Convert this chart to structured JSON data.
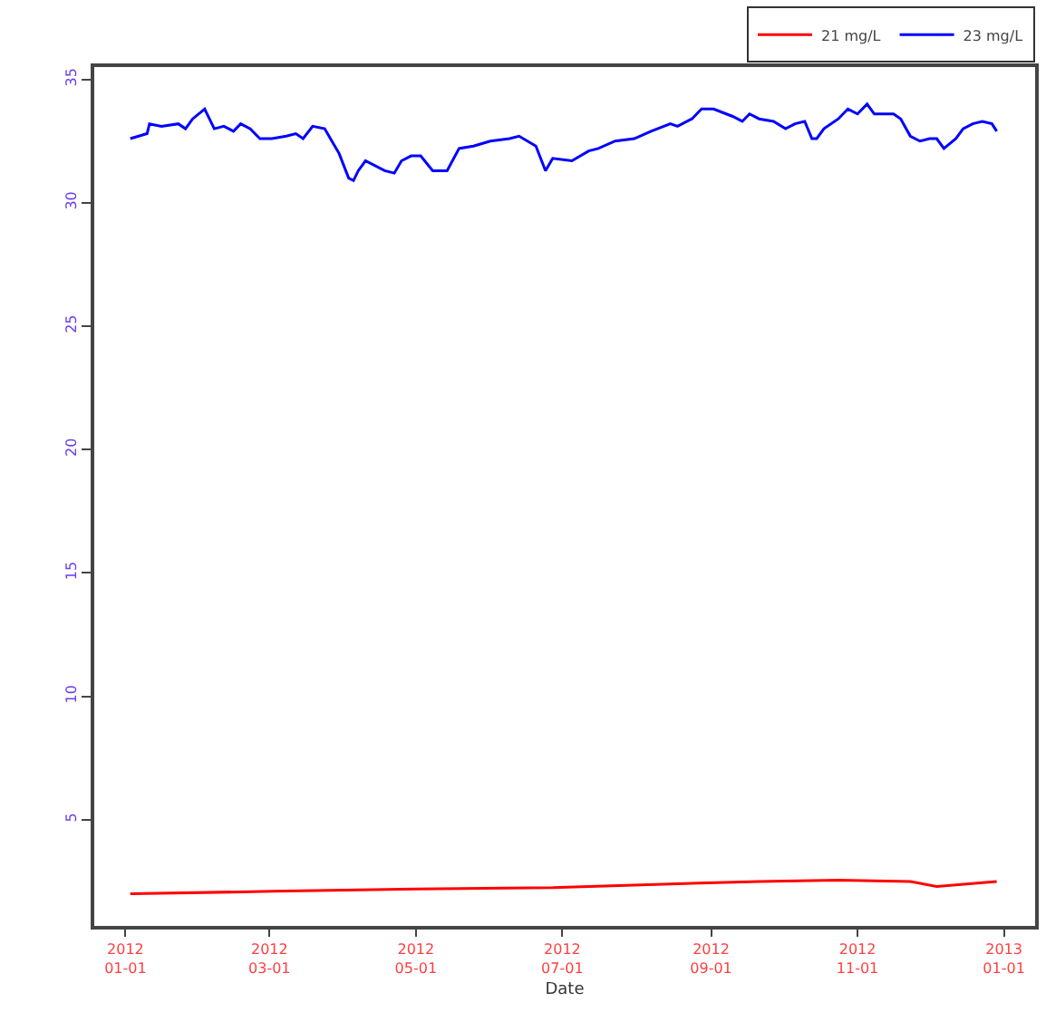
{
  "chart_data": {
    "type": "line",
    "xlabel": "Date",
    "legend": "top right",
    "marker": "none",
    "line_style": "solid",
    "xlim": [
      "2011-12-19",
      "2013-01-14"
    ],
    "ylim": [
      0.7,
      35.5
    ],
    "xticks": [
      {
        "value": "2012-01-01",
        "label": "2012\n01-01"
      },
      {
        "value": "2012-03-01",
        "label": "2012\n03-01"
      },
      {
        "value": "2012-05-01",
        "label": "2012\n05-01"
      },
      {
        "value": "2012-07-01",
        "label": "2012\n07-01"
      },
      {
        "value": "2012-09-01",
        "label": "2012\n09-01"
      },
      {
        "value": "2012-11-01",
        "label": "2012\n11-01"
      },
      {
        "value": "2013-01-01",
        "label": "2013\n01-01"
      }
    ],
    "yticks": [
      5,
      10,
      15,
      20,
      25,
      30,
      35
    ],
    "series": [
      {
        "name": "21 mg/L",
        "color": "#ff0000",
        "x": [
          "2012-01-03",
          "2012-03-02",
          "2012-05-01",
          "2012-06-27",
          "2012-08-15",
          "2012-09-21",
          "2012-10-24",
          "2012-11-23",
          "2012-12-04",
          "2012-12-29"
        ],
        "values": [
          2.0,
          2.1,
          2.2,
          2.25,
          2.4,
          2.5,
          2.55,
          2.5,
          2.3,
          2.5
        ]
      },
      {
        "name": "23 mg/L",
        "color": "#0000ff",
        "x": [
          "2012-01-03",
          "2012-01-10",
          "2012-01-11",
          "2012-01-16",
          "2012-01-23",
          "2012-01-26",
          "2012-01-29",
          "2012-02-03",
          "2012-02-07",
          "2012-02-11",
          "2012-02-15",
          "2012-02-18",
          "2012-02-22",
          "2012-02-26",
          "2012-03-02",
          "2012-03-08",
          "2012-03-12",
          "2012-03-15",
          "2012-03-19",
          "2012-03-24",
          "2012-03-27",
          "2012-03-30",
          "2012-04-03",
          "2012-04-05",
          "2012-04-07",
          "2012-04-10",
          "2012-04-18",
          "2012-04-22",
          "2012-04-25",
          "2012-04-29",
          "2012-05-03",
          "2012-05-08",
          "2012-05-10",
          "2012-05-14",
          "2012-05-19",
          "2012-05-25",
          "2012-06-01",
          "2012-06-09",
          "2012-06-13",
          "2012-06-20",
          "2012-06-24",
          "2012-06-27",
          "2012-07-05",
          "2012-07-12",
          "2012-07-16",
          "2012-07-23",
          "2012-07-31",
          "2012-08-07",
          "2012-08-15",
          "2012-08-18",
          "2012-08-24",
          "2012-08-28",
          "2012-09-02",
          "2012-09-10",
          "2012-09-14",
          "2012-09-17",
          "2012-09-21",
          "2012-09-27",
          "2012-10-02",
          "2012-10-06",
          "2012-10-10",
          "2012-10-13",
          "2012-10-15",
          "2012-10-18",
          "2012-10-24",
          "2012-10-28",
          "2012-11-01",
          "2012-11-05",
          "2012-11-08",
          "2012-11-12",
          "2012-11-16",
          "2012-11-19",
          "2012-11-23",
          "2012-11-27",
          "2012-12-01",
          "2012-12-04",
          "2012-12-07",
          "2012-12-12",
          "2012-12-15",
          "2012-12-19",
          "2012-12-23",
          "2012-12-27",
          "2012-12-29"
        ],
        "values": [
          32.6,
          32.8,
          33.2,
          33.1,
          33.2,
          33.0,
          33.4,
          33.8,
          33.0,
          33.1,
          32.9,
          33.2,
          33.0,
          32.6,
          32.6,
          32.7,
          32.8,
          32.6,
          33.1,
          33.0,
          32.5,
          32.0,
          31.0,
          30.9,
          31.3,
          31.7,
          31.3,
          31.2,
          31.7,
          31.9,
          31.9,
          31.3,
          31.3,
          31.3,
          32.2,
          32.3,
          32.5,
          32.6,
          32.7,
          32.3,
          31.3,
          31.8,
          31.7,
          32.1,
          32.2,
          32.5,
          32.6,
          32.9,
          33.2,
          33.1,
          33.4,
          33.8,
          33.8,
          33.5,
          33.3,
          33.6,
          33.4,
          33.3,
          33.0,
          33.2,
          33.3,
          32.6,
          32.6,
          33.0,
          33.4,
          33.8,
          33.6,
          34.0,
          33.6,
          33.6,
          33.6,
          33.4,
          32.7,
          32.5,
          32.6,
          32.6,
          32.2,
          32.6,
          33.0,
          33.2,
          33.3,
          33.2,
          32.9
        ]
      }
    ]
  }
}
